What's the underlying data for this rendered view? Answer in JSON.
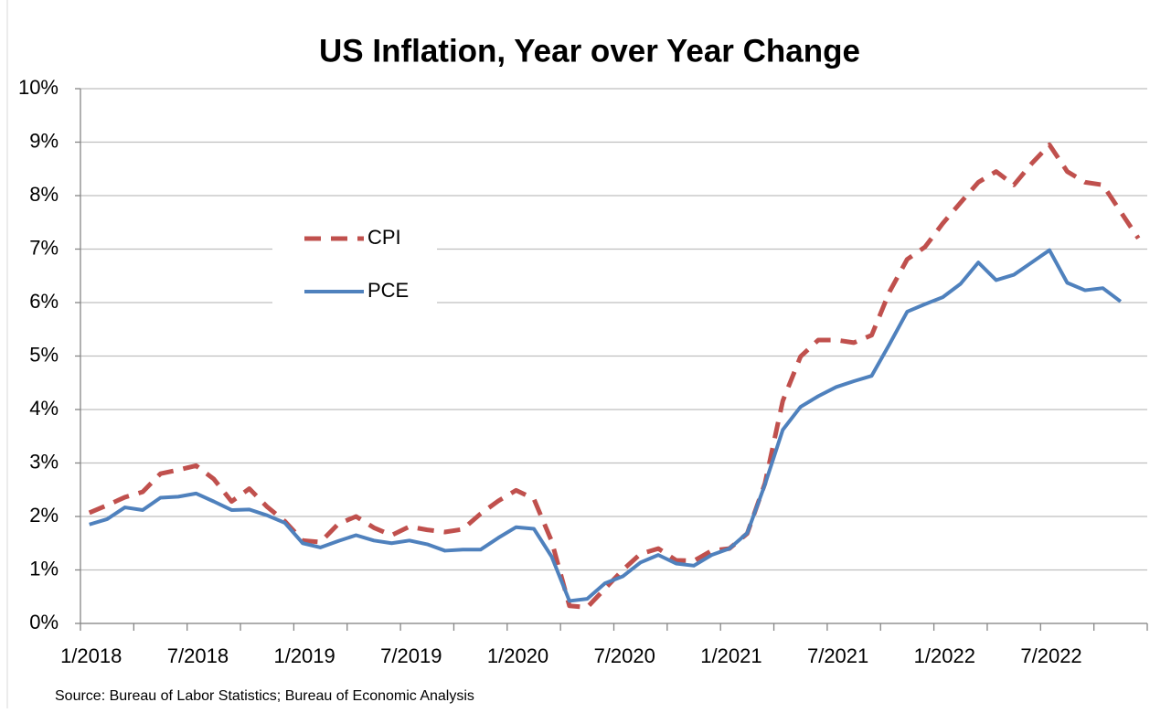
{
  "chart_data": {
    "type": "line",
    "title": "US Inflation, Year over Year Change",
    "source": "Source: Bureau of Labor Statistics; Bureau of Economic Analysis",
    "categories": [
      "1/2018",
      null,
      null,
      null,
      null,
      null,
      "7/2018",
      null,
      null,
      null,
      null,
      null,
      "1/2019",
      null,
      null,
      null,
      null,
      null,
      "7/2019",
      null,
      null,
      null,
      null,
      null,
      "1/2020",
      null,
      null,
      null,
      null,
      null,
      "7/2020",
      null,
      null,
      null,
      null,
      null,
      "1/2021",
      null,
      null,
      null,
      null,
      null,
      "7/2021",
      null,
      null,
      null,
      null,
      null,
      "1/2022",
      null,
      null,
      null,
      null,
      null,
      "7/2022",
      null,
      null,
      null,
      null,
      null
    ],
    "series": [
      {
        "name": "CPI",
        "color": "#c0504d",
        "dashed": true,
        "values": [
          2.07,
          2.21,
          2.36,
          2.46,
          2.8,
          2.87,
          2.95,
          2.7,
          2.28,
          2.52,
          2.18,
          1.91,
          1.55,
          1.52,
          1.86,
          2.0,
          1.79,
          1.65,
          1.81,
          1.75,
          1.71,
          1.76,
          2.05,
          2.29,
          2.49,
          2.33,
          1.54,
          0.33,
          0.3,
          0.65,
          1.0,
          1.3,
          1.4,
          1.18,
          1.17,
          1.36,
          1.4,
          1.68,
          2.62,
          4.16,
          4.99,
          5.3,
          5.3,
          5.25,
          5.39,
          6.2,
          6.81,
          7.04,
          7.48,
          7.87,
          8.25,
          8.45,
          8.2,
          8.6,
          8.95,
          8.45,
          8.25,
          8.2,
          7.7,
          7.2
        ]
      },
      {
        "name": "PCE",
        "color": "#4f81bd",
        "dashed": false,
        "values": [
          1.85,
          1.95,
          2.17,
          2.12,
          2.35,
          2.37,
          2.43,
          2.28,
          2.12,
          2.13,
          2.02,
          1.88,
          1.5,
          1.42,
          1.54,
          1.65,
          1.55,
          1.5,
          1.55,
          1.48,
          1.36,
          1.38,
          1.38,
          1.6,
          1.8,
          1.77,
          1.25,
          0.42,
          0.46,
          0.75,
          0.88,
          1.14,
          1.28,
          1.12,
          1.08,
          1.28,
          1.4,
          1.69,
          2.6,
          3.62,
          4.05,
          4.25,
          4.42,
          4.53,
          4.63,
          5.22,
          5.83,
          5.97,
          6.1,
          6.35,
          6.75,
          6.42,
          6.52,
          6.75,
          6.98,
          6.37,
          6.23,
          6.27,
          6.02,
          null
        ]
      }
    ],
    "ylim": [
      0,
      10
    ],
    "yticks": [
      {
        "value": 0,
        "label": "0%"
      },
      {
        "value": 1,
        "label": "1%"
      },
      {
        "value": 2,
        "label": "2%"
      },
      {
        "value": 3,
        "label": "3%"
      },
      {
        "value": 4,
        "label": "4%"
      },
      {
        "value": 5,
        "label": "5%"
      },
      {
        "value": 6,
        "label": "6%"
      },
      {
        "value": 7,
        "label": "7%"
      },
      {
        "value": 8,
        "label": "8%"
      },
      {
        "value": 9,
        "label": "9%"
      },
      {
        "value": 10,
        "label": "10%"
      }
    ],
    "grid": true
  }
}
